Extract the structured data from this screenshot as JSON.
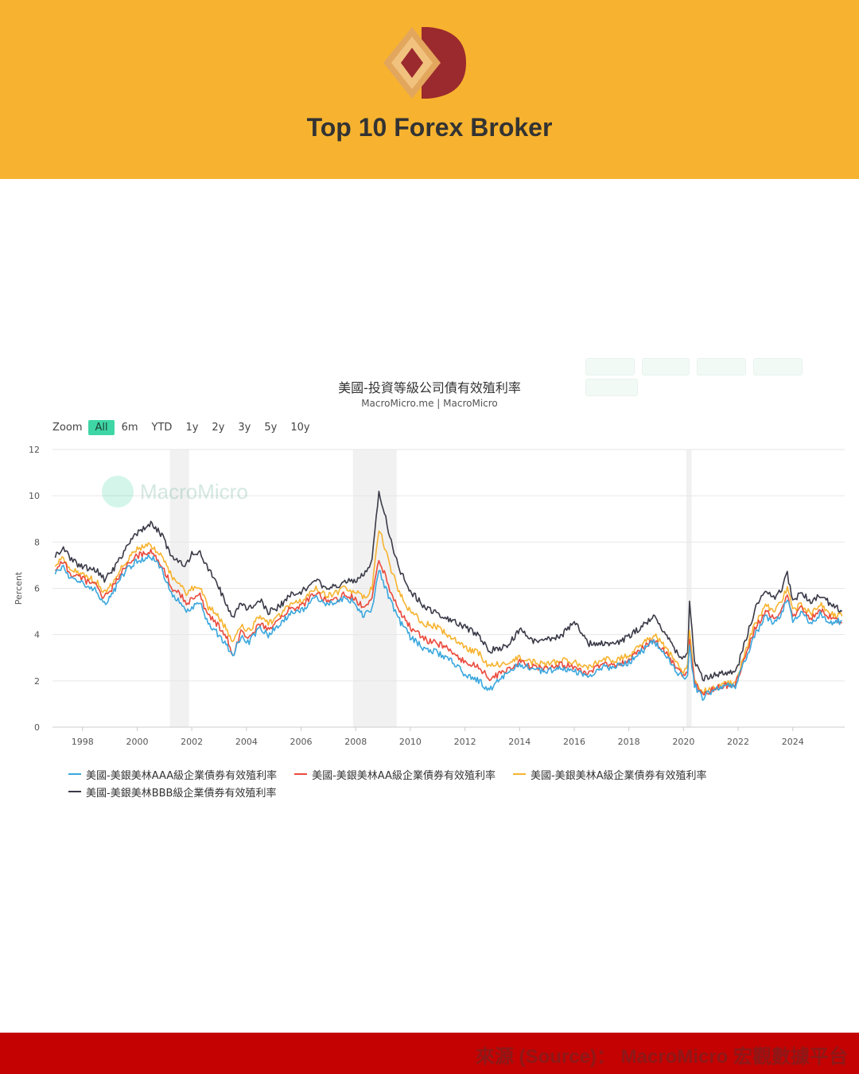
{
  "header": {
    "brand_title": "Top 10 Forex Broker",
    "logo_icon": "broker-logo-icon",
    "background_color": "#f7b32f"
  },
  "toolbar": {
    "faded_buttons": [
      "",
      "",
      "",
      "",
      ""
    ]
  },
  "chart_header": {
    "title": "美國-投資等級公司債有效殖利率",
    "subtitle": "MacroMicro.me | MacroMicro"
  },
  "zoom": {
    "label": "Zoom",
    "options": [
      "All",
      "6m",
      "YTD",
      "1y",
      "2y",
      "3y",
      "5y",
      "10y"
    ],
    "active": "All"
  },
  "watermark": {
    "text": "MacroMicro"
  },
  "footer": {
    "source_text": "來源 (Source)： MacroMicro 宏觀數據平台"
  },
  "chart_data": {
    "type": "line",
    "title": "美國-投資等級公司債有效殖利率",
    "subtitle": "MacroMicro.me | MacroMicro",
    "ylabel": "Percent",
    "xlabel": "",
    "ylim": [
      0,
      12
    ],
    "yticks": [
      0,
      2,
      4,
      6,
      8,
      10,
      12
    ],
    "xlim": [
      1996.9,
      2025.9
    ],
    "xticks": [
      "1998",
      "2000",
      "2002",
      "2004",
      "2006",
      "2008",
      "2010",
      "2012",
      "2014",
      "2016",
      "2018",
      "2020",
      "2022",
      "2024"
    ],
    "grid": true,
    "legend_position": "bottom-left",
    "recessions": [
      [
        2001.2,
        2001.9
      ],
      [
        2007.9,
        2009.5
      ],
      [
        2020.1,
        2020.3
      ]
    ],
    "series": [
      {
        "name": "美國-美銀美林AAA級企業債券有效殖利率",
        "color": "#3aa7dd",
        "x": [
          1997.0,
          1997.3,
          1997.6,
          1998.0,
          1998.5,
          1998.8,
          1999.2,
          1999.6,
          2000.0,
          2000.5,
          2000.9,
          2001.3,
          2001.6,
          2001.8,
          2002.0,
          2002.3,
          2002.6,
          2002.9,
          2003.3,
          2003.5,
          2003.8,
          2004.1,
          2004.5,
          2004.8,
          2005.2,
          2005.6,
          2006.0,
          2006.5,
          2006.9,
          2007.3,
          2007.6,
          2007.9,
          2008.3,
          2008.6,
          2008.85,
          2009.0,
          2009.3,
          2009.6,
          2010.0,
          2010.5,
          2011.0,
          2011.5,
          2012.0,
          2012.5,
          2012.9,
          2013.5,
          2014.0,
          2014.5,
          2015.0,
          2015.5,
          2016.0,
          2016.5,
          2017.0,
          2017.5,
          2018.0,
          2018.5,
          2018.9,
          2019.3,
          2019.7,
          2020.0,
          2020.15,
          2020.22,
          2020.4,
          2020.7,
          2021.0,
          2021.5,
          2021.9,
          2022.3,
          2022.6,
          2022.8,
          2023.0,
          2023.3,
          2023.6,
          2023.8,
          2024.0,
          2024.3,
          2024.7,
          2025.0,
          2025.4,
          2025.8
        ],
        "values": [
          6.7,
          6.9,
          6.4,
          6.2,
          5.9,
          5.3,
          6.0,
          6.8,
          7.2,
          7.4,
          6.8,
          5.6,
          5.4,
          5.0,
          5.2,
          5.4,
          4.4,
          4.1,
          3.5,
          3.1,
          3.9,
          3.7,
          4.3,
          4.0,
          4.4,
          4.9,
          5.0,
          5.6,
          5.3,
          5.4,
          5.6,
          5.4,
          4.8,
          5.1,
          6.8,
          6.3,
          5.4,
          4.6,
          3.9,
          3.4,
          3.2,
          2.9,
          2.3,
          2.0,
          1.6,
          2.3,
          2.7,
          2.5,
          2.4,
          2.6,
          2.4,
          2.2,
          2.6,
          2.6,
          2.8,
          3.3,
          3.7,
          3.2,
          2.5,
          2.1,
          2.2,
          3.5,
          1.8,
          1.3,
          1.5,
          1.8,
          1.8,
          3.0,
          4.0,
          4.3,
          4.8,
          4.5,
          4.9,
          5.6,
          4.6,
          4.9,
          4.5,
          4.9,
          4.5,
          4.6
        ]
      },
      {
        "name": "美國-美銀美林AA級企業債券有效殖利率",
        "color": "#ea4a3d",
        "x": [
          1997.0,
          1997.3,
          1997.6,
          1998.0,
          1998.5,
          1998.8,
          1999.2,
          1999.6,
          2000.0,
          2000.5,
          2000.9,
          2001.3,
          2001.6,
          2001.8,
          2002.0,
          2002.3,
          2002.6,
          2002.9,
          2003.3,
          2003.5,
          2003.8,
          2004.1,
          2004.5,
          2004.8,
          2005.2,
          2005.6,
          2006.0,
          2006.5,
          2006.9,
          2007.3,
          2007.6,
          2007.9,
          2008.3,
          2008.6,
          2008.85,
          2009.0,
          2009.3,
          2009.6,
          2010.0,
          2010.5,
          2011.0,
          2011.5,
          2012.0,
          2012.5,
          2012.9,
          2013.5,
          2014.0,
          2014.5,
          2015.0,
          2015.5,
          2016.0,
          2016.5,
          2017.0,
          2017.5,
          2018.0,
          2018.5,
          2018.9,
          2019.3,
          2019.7,
          2020.0,
          2020.15,
          2020.22,
          2020.4,
          2020.7,
          2021.0,
          2021.5,
          2021.9,
          2022.3,
          2022.6,
          2022.8,
          2023.0,
          2023.3,
          2023.6,
          2023.8,
          2024.0,
          2024.3,
          2024.7,
          2025.0,
          2025.4,
          2025.8
        ],
        "values": [
          6.9,
          7.1,
          6.6,
          6.4,
          6.1,
          5.6,
          6.2,
          7.0,
          7.4,
          7.6,
          7.0,
          6.0,
          5.7,
          5.3,
          5.5,
          5.7,
          4.8,
          4.5,
          3.8,
          3.0,
          4.1,
          3.9,
          4.5,
          4.2,
          4.6,
          5.1,
          5.2,
          5.8,
          5.5,
          5.5,
          5.8,
          5.6,
          5.2,
          5.6,
          7.2,
          6.8,
          5.8,
          5.0,
          4.3,
          3.8,
          3.6,
          3.3,
          2.8,
          2.6,
          2.1,
          2.4,
          2.8,
          2.6,
          2.5,
          2.7,
          2.6,
          2.3,
          2.7,
          2.7,
          2.9,
          3.4,
          3.8,
          3.3,
          2.6,
          2.2,
          2.3,
          3.8,
          1.9,
          1.4,
          1.6,
          1.8,
          1.8,
          3.2,
          4.2,
          4.6,
          5.0,
          4.7,
          5.1,
          5.8,
          4.8,
          5.1,
          4.7,
          5.1,
          4.7,
          4.5
        ]
      },
      {
        "name": "美國-美銀美林A級企業債券有效殖利率",
        "color": "#f7b32f",
        "x": [
          1997.0,
          1997.3,
          1997.6,
          1998.0,
          1998.5,
          1998.8,
          1999.2,
          1999.6,
          2000.0,
          2000.5,
          2000.9,
          2001.3,
          2001.6,
          2001.8,
          2002.0,
          2002.3,
          2002.6,
          2002.9,
          2003.3,
          2003.5,
          2003.8,
          2004.1,
          2004.5,
          2004.8,
          2005.2,
          2005.6,
          2006.0,
          2006.5,
          2006.9,
          2007.3,
          2007.6,
          2007.9,
          2008.3,
          2008.6,
          2008.85,
          2009.0,
          2009.3,
          2009.6,
          2010.0,
          2010.5,
          2011.0,
          2011.5,
          2012.0,
          2012.5,
          2012.9,
          2013.5,
          2014.0,
          2014.5,
          2015.0,
          2015.5,
          2016.0,
          2016.5,
          2017.0,
          2017.5,
          2018.0,
          2018.5,
          2018.9,
          2019.3,
          2019.7,
          2020.0,
          2020.15,
          2020.22,
          2020.4,
          2020.7,
          2021.0,
          2021.5,
          2021.9,
          2022.3,
          2022.6,
          2022.8,
          2023.0,
          2023.3,
          2023.6,
          2023.8,
          2024.0,
          2024.3,
          2024.7,
          2025.0,
          2025.4,
          2025.8
        ],
        "values": [
          7.0,
          7.3,
          6.8,
          6.6,
          6.3,
          5.8,
          6.4,
          7.2,
          7.7,
          7.9,
          7.4,
          6.4,
          6.2,
          5.8,
          6.0,
          6.1,
          5.2,
          4.9,
          4.2,
          3.6,
          4.4,
          4.2,
          4.8,
          4.5,
          4.8,
          5.3,
          5.4,
          6.0,
          5.7,
          5.8,
          6.0,
          5.9,
          5.6,
          6.0,
          8.6,
          8.0,
          6.8,
          5.8,
          5.0,
          4.5,
          4.3,
          3.9,
          3.4,
          3.2,
          2.6,
          2.8,
          3.0,
          2.8,
          2.7,
          2.9,
          2.8,
          2.6,
          2.9,
          2.9,
          3.1,
          3.6,
          4.0,
          3.5,
          2.8,
          2.4,
          2.6,
          4.3,
          2.1,
          1.5,
          1.7,
          1.9,
          1.9,
          3.4,
          4.4,
          4.8,
          5.3,
          5.0,
          5.4,
          6.1,
          5.0,
          5.3,
          4.9,
          5.3,
          4.9,
          4.8
        ]
      },
      {
        "name": "美國-美銀美林BBB級企業債券有效殖利率",
        "color": "#3a3a48",
        "x": [
          1997.0,
          1997.3,
          1997.6,
          1998.0,
          1998.5,
          1998.8,
          1999.2,
          1999.6,
          2000.0,
          2000.5,
          2000.9,
          2001.3,
          2001.6,
          2001.8,
          2002.0,
          2002.3,
          2002.6,
          2002.9,
          2003.3,
          2003.5,
          2003.8,
          2004.1,
          2004.5,
          2004.8,
          2005.2,
          2005.6,
          2006.0,
          2006.5,
          2006.9,
          2007.3,
          2007.6,
          2007.9,
          2008.3,
          2008.6,
          2008.85,
          2009.0,
          2009.3,
          2009.6,
          2010.0,
          2010.5,
          2011.0,
          2011.5,
          2012.0,
          2012.5,
          2012.9,
          2013.5,
          2014.0,
          2014.5,
          2015.0,
          2015.5,
          2016.0,
          2016.5,
          2017.0,
          2017.5,
          2018.0,
          2018.5,
          2018.9,
          2019.3,
          2019.7,
          2020.0,
          2020.15,
          2020.22,
          2020.4,
          2020.7,
          2021.0,
          2021.5,
          2021.9,
          2022.3,
          2022.6,
          2022.8,
          2023.0,
          2023.3,
          2023.6,
          2023.8,
          2024.0,
          2024.3,
          2024.7,
          2025.0,
          2025.4,
          2025.8
        ],
        "values": [
          7.4,
          7.8,
          7.2,
          6.9,
          6.8,
          6.4,
          6.9,
          7.8,
          8.4,
          8.8,
          8.3,
          7.3,
          7.1,
          7.0,
          7.5,
          7.6,
          6.8,
          6.3,
          5.2,
          4.8,
          5.3,
          5.1,
          5.5,
          5.0,
          5.2,
          5.7,
          5.8,
          6.4,
          6.0,
          6.1,
          6.3,
          6.3,
          6.6,
          7.2,
          10.2,
          9.5,
          8.0,
          6.8,
          5.9,
          5.2,
          4.9,
          4.6,
          4.3,
          4.0,
          3.3,
          3.5,
          4.2,
          3.7,
          3.8,
          3.9,
          4.6,
          3.6,
          3.6,
          3.6,
          3.9,
          4.4,
          4.8,
          4.1,
          3.3,
          3.0,
          3.1,
          5.5,
          2.8,
          2.1,
          2.2,
          2.4,
          2.3,
          3.9,
          5.0,
          5.6,
          6.0,
          5.6,
          6.0,
          6.6,
          5.5,
          5.8,
          5.4,
          5.7,
          5.3,
          5.0
        ]
      }
    ]
  }
}
